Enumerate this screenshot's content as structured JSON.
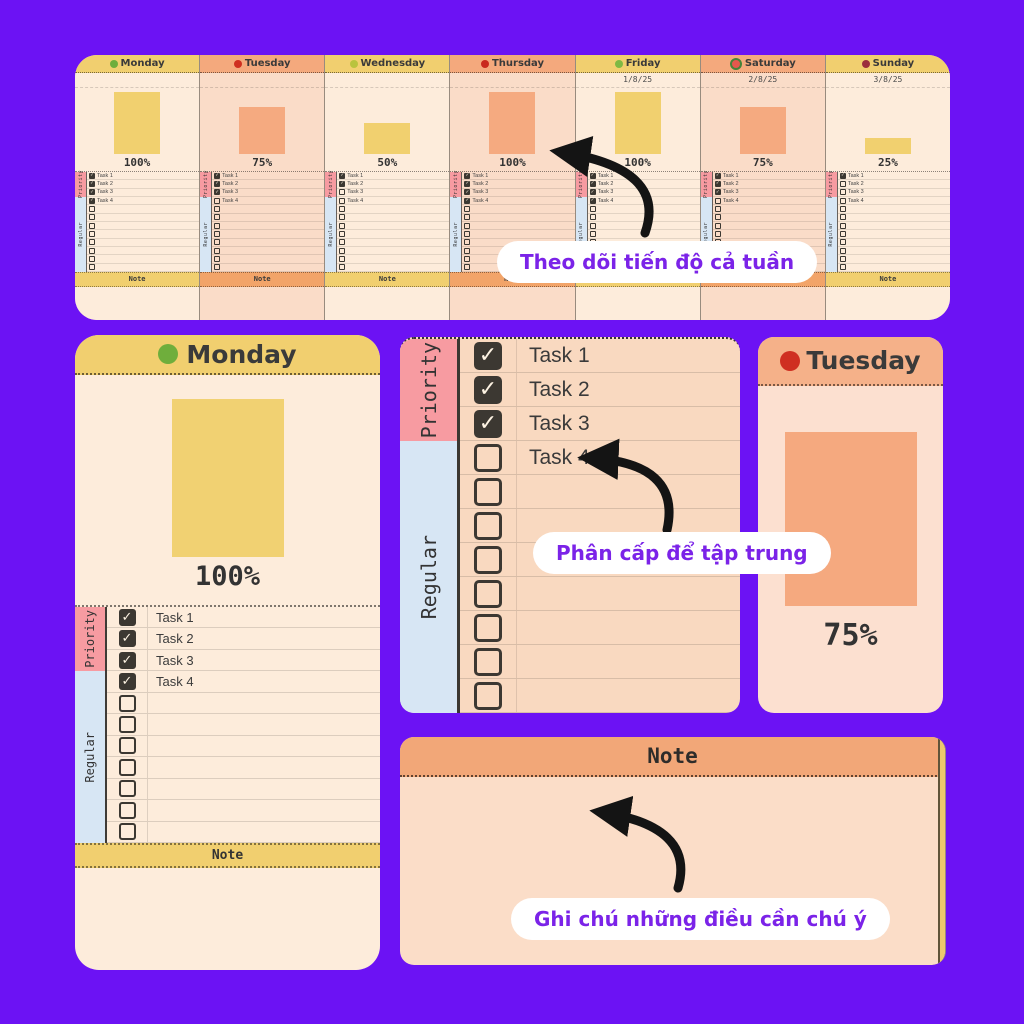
{
  "page": {
    "background": "#6c12f4"
  },
  "colors": {
    "yellow": "#f1cf6f",
    "orange_header": "#f4a97d",
    "cream_body": "#fdecdb",
    "salmon_body": "#fadcc8",
    "bar_yellow": "#f1d06f",
    "bar_orange": "#f5aa80",
    "priority_pink": "#f79ba1",
    "regular_blue": "#d7e6f4",
    "note_band_orange": "#f2a469",
    "checkbox_dark": "#3c3832",
    "annotation_purple": "#7b23e8",
    "bubble_white": "#ffffff"
  },
  "icon_colors": {
    "green-apple": "#6fae3c",
    "red-apple": "#cf2f21",
    "pear": "#b9c33e",
    "chili": "#c92a1e",
    "lime": "#7fb943",
    "watermelon": "#e4584d",
    "grapes": "#9c2f3d"
  },
  "labels": {
    "priority": "Priority",
    "regular": "Regular",
    "note": "Note"
  },
  "tasks": [
    "Task 1",
    "Task 2",
    "Task 3",
    "Task 4"
  ],
  "week": {
    "days": [
      {
        "name": "Monday",
        "icon": "green-apple",
        "date": "",
        "progress": 100,
        "progress_label": "100%",
        "checked": [
          true,
          true,
          true,
          true
        ],
        "theme": "yellow"
      },
      {
        "name": "Tuesday",
        "icon": "red-apple",
        "date": "",
        "progress": 75,
        "progress_label": "75%",
        "checked": [
          true,
          true,
          true,
          false
        ],
        "theme": "orange"
      },
      {
        "name": "Wednesday",
        "icon": "pear",
        "date": "",
        "progress": 50,
        "progress_label": "50%",
        "checked": [
          true,
          true,
          false,
          false
        ],
        "theme": "yellow"
      },
      {
        "name": "Thursday",
        "icon": "chili",
        "date": "",
        "progress": 100,
        "progress_label": "100%",
        "checked": [
          true,
          true,
          true,
          true
        ],
        "theme": "orange"
      },
      {
        "name": "Friday",
        "icon": "lime",
        "date": "1/8/25",
        "progress": 100,
        "progress_label": "100%",
        "checked": [
          true,
          true,
          true,
          true
        ],
        "theme": "yellow"
      },
      {
        "name": "Saturday",
        "icon": "watermelon",
        "date": "2/8/25",
        "progress": 75,
        "progress_label": "75%",
        "checked": [
          true,
          true,
          true,
          false
        ],
        "theme": "orange"
      },
      {
        "name": "Sunday",
        "icon": "grapes",
        "date": "3/8/25",
        "progress": 25,
        "progress_label": "25%",
        "checked": [
          true,
          false,
          false,
          false
        ],
        "theme": "yellow"
      }
    ],
    "empty_regular_rows": 8
  },
  "monday_card": {
    "title": "Monday",
    "icon": "green-apple",
    "progress": 100,
    "progress_label": "100%",
    "checked": [
      true,
      true,
      true,
      true
    ],
    "empty_regular_rows": 7
  },
  "tasklist_panel": {
    "checked": [
      true,
      true,
      true,
      false
    ],
    "empty_regular_rows": 7
  },
  "tuesday_card": {
    "title": "Tuesday",
    "icon": "red-apple",
    "progress": 75,
    "progress_label": "75%"
  },
  "note_card": {
    "title": "Note"
  },
  "annotations": [
    {
      "text": "Theo dõi tiến độ cả tuần"
    },
    {
      "text": "Phân cấp để tập trung"
    },
    {
      "text": "Ghi chú những điều cần chú ý"
    }
  ]
}
